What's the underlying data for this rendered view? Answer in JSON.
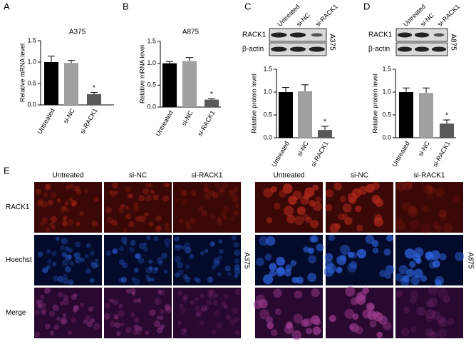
{
  "panel_labels": [
    "A",
    "B",
    "C",
    "D",
    "E"
  ],
  "chart_data": [
    {
      "type": "bar",
      "title": "A375",
      "y_label": "Relative mRNA level",
      "categories": [
        "Untreated",
        "si-NC",
        "si-RACK1"
      ],
      "values": [
        1.0,
        0.98,
        0.25
      ],
      "errors": [
        0.14,
        0.06,
        0.04
      ],
      "colors": [
        "#000000",
        "#a0a0a0",
        "#595959"
      ],
      "annotation": "*",
      "ylim": [
        0,
        1.5
      ],
      "yticks": [
        {
          "value": 0,
          "label": "0.0"
        },
        0.5,
        {
          "value": 1,
          "label": "1.0"
        },
        1.5
      ]
    },
    {
      "type": "bar",
      "title": "A875",
      "y_label": "Relative mRNA level",
      "categories": [
        "Untreated",
        "si-NC",
        "si-RACK1"
      ],
      "values": [
        1.0,
        1.05,
        0.17
      ],
      "errors": [
        0.04,
        0.08,
        0.02
      ],
      "colors": [
        "#000000",
        "#a0a0a0",
        "#595959"
      ],
      "annotation": "*",
      "ylim": [
        0,
        1.5
      ],
      "yticks": [
        {
          "value": 0,
          "label": "0.0"
        },
        0.5,
        {
          "value": 1,
          "label": "1.0"
        },
        1.5
      ]
    },
    {
      "type": "bar",
      "y_label": "Relative protein level",
      "categories": [
        "Untreated",
        "si-NC",
        "si-RACK1"
      ],
      "values": [
        1.0,
        1.02,
        0.17
      ],
      "errors": [
        0.1,
        0.14,
        0.08
      ],
      "colors": [
        "#000000",
        "#a0a0a0",
        "#595959"
      ],
      "annotation": "*",
      "ylim": [
        0,
        1.5
      ],
      "yticks": [
        {
          "value": 0,
          "label": "0.0"
        },
        0.5,
        {
          "value": 1,
          "label": "1.0"
        },
        1.5
      ]
    },
    {
      "type": "bar",
      "y_label": "Relative protein level",
      "categories": [
        "Untreated",
        "si-NC",
        "si-RACK1"
      ],
      "values": [
        1.0,
        0.98,
        0.31
      ],
      "errors": [
        0.09,
        0.11,
        0.08
      ],
      "colors": [
        "#000000",
        "#a0a0a0",
        "#595959"
      ],
      "annotation": "*",
      "ylim": [
        0,
        1.5
      ],
      "yticks": [
        {
          "value": 0,
          "label": "0.0"
        },
        0.5,
        {
          "value": 1,
          "label": "1.0"
        },
        1.5
      ]
    }
  ],
  "blots": [
    {
      "columns": [
        "Untreated",
        "si-NC",
        "si-RACK1"
      ],
      "rows": [
        "RACK1",
        "β-actin"
      ],
      "cell_line": "A375"
    },
    {
      "columns": [
        "Untreated",
        "si-NC",
        "si-RACK1"
      ],
      "rows": [
        "RACK1",
        "β-actin"
      ],
      "cell_line": "A875"
    }
  ],
  "images": {
    "rows": [
      "RACK1",
      "Hoechst",
      "Merge"
    ],
    "groups": [
      {
        "cell_line": "A375",
        "columns": [
          "Untreated",
          "si-NC",
          "si-RACK1"
        ]
      },
      {
        "cell_line": "A875",
        "columns": [
          "Untreated",
          "si-NC",
          "si-RACK1"
        ]
      }
    ]
  }
}
